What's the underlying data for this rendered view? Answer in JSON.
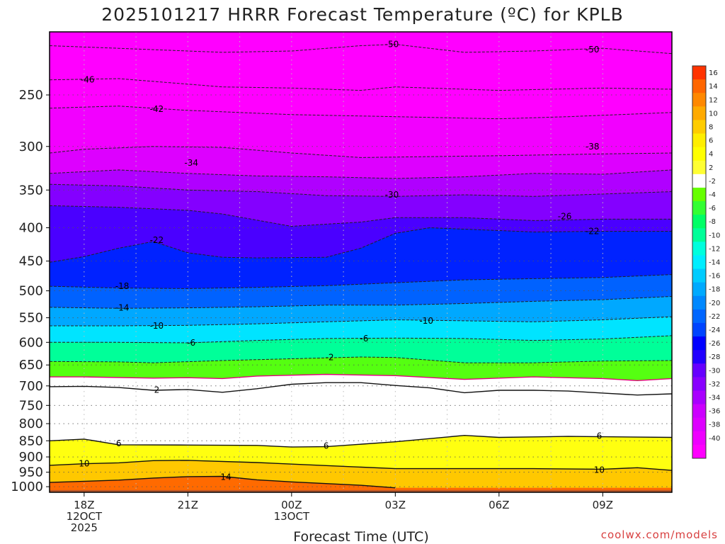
{
  "chart_data": {
    "type": "heatmap",
    "title": "2025101217 HRRR Forecast Temperature (ºC) for KPLB",
    "xlabel": "Forecast Time (UTC)",
    "ylabel": "",
    "credit": "coolwx.com/models",
    "x_ticks": [
      {
        "h": 1,
        "lines": [
          "18Z",
          "12OCT",
          "2025"
        ]
      },
      {
        "h": 4,
        "lines": [
          "21Z"
        ]
      },
      {
        "h": 7,
        "lines": [
          "00Z",
          "13OCT"
        ]
      },
      {
        "h": 10,
        "lines": [
          "03Z"
        ]
      },
      {
        "h": 13,
        "lines": [
          "06Z"
        ]
      },
      {
        "h": 16,
        "lines": [
          "09Z"
        ]
      }
    ],
    "x_range_hours": [
      0,
      18
    ],
    "y_ticks_hpa": [
      250,
      300,
      350,
      400,
      450,
      500,
      550,
      600,
      650,
      700,
      750,
      800,
      850,
      900,
      950,
      1000
    ],
    "y_range_hpa": [
      200,
      1020
    ],
    "grid": "dotted",
    "colorbar": {
      "levels": [
        -40,
        -38,
        -36,
        -34,
        -32,
        -30,
        -28,
        -26,
        -24,
        -22,
        -20,
        -18,
        -16,
        -14,
        -12,
        -10,
        -8,
        -6,
        -4,
        -2,
        2,
        4,
        6,
        8,
        10,
        12,
        14,
        16
      ],
      "colors": [
        "#ff00ff",
        "#ee00ff",
        "#dd00ff",
        "#cc00ff",
        "#a900ff",
        "#8800ff",
        "#6600ff",
        "#2200ff",
        "#0000ff",
        "#0044ff",
        "#0066ff",
        "#0088ff",
        "#00aaff",
        "#00ccff",
        "#00eeff",
        "#00ffdd",
        "#00ff99",
        "#00ff66",
        "#33ff33",
        "#66ff00",
        "#ffffff",
        "#ffff33",
        "#ffff00",
        "#ffee00",
        "#ffcc00",
        "#ffaa00",
        "#ff8800",
        "#ff6600",
        "#ff3300"
      ],
      "top_value": 16,
      "bottom_value": -40
    },
    "contours": [
      {
        "value": -50,
        "style": "dashed",
        "pts": [
          [
            0,
            210
          ],
          [
            2,
            212
          ],
          [
            5,
            215
          ],
          [
            7,
            214
          ],
          [
            9,
            210
          ],
          [
            10,
            209
          ],
          [
            12,
            215
          ],
          [
            14,
            214
          ],
          [
            16,
            212
          ],
          [
            18,
            216
          ]
        ],
        "labels": [
          [
            9.9,
            209
          ],
          [
            15.7,
            213
          ]
        ]
      },
      {
        "value": -46,
        "style": "dashed",
        "pts": [
          [
            0,
            237
          ],
          [
            2,
            236
          ],
          [
            5,
            243
          ],
          [
            7,
            244
          ],
          [
            9,
            246
          ],
          [
            10,
            243
          ],
          [
            13,
            246
          ],
          [
            16,
            244
          ],
          [
            18,
            245
          ]
        ],
        "labels": [
          [
            1.1,
            237
          ]
        ]
      },
      {
        "value": -42,
        "style": "dashed",
        "pts": [
          [
            0,
            262
          ],
          [
            2,
            260
          ],
          [
            4,
            264
          ],
          [
            7,
            268
          ],
          [
            10,
            270
          ],
          [
            13,
            272
          ],
          [
            15,
            270
          ],
          [
            18,
            266
          ]
        ],
        "labels": [
          [
            3.1,
            263
          ]
        ]
      },
      {
        "value": -38,
        "style": "dashed",
        "pts": [
          [
            0,
            307
          ],
          [
            1,
            303
          ],
          [
            3,
            300
          ],
          [
            5,
            301
          ],
          [
            7,
            307
          ],
          [
            9,
            312
          ],
          [
            11,
            311
          ],
          [
            13,
            310
          ],
          [
            16,
            308
          ],
          [
            18,
            307
          ]
        ],
        "labels": [
          [
            15.7,
            300
          ]
        ]
      },
      {
        "value": -34,
        "style": "dashed",
        "pts": [
          [
            0,
            330
          ],
          [
            2,
            326
          ],
          [
            4,
            330
          ],
          [
            6,
            333
          ],
          [
            8,
            334
          ],
          [
            10,
            336
          ],
          [
            12,
            334
          ],
          [
            14,
            330
          ],
          [
            16,
            331
          ],
          [
            18,
            326
          ]
        ],
        "labels": [
          [
            4.1,
            318
          ]
        ]
      },
      {
        "value": -30,
        "style": "dashed",
        "pts": [
          [
            0,
            343
          ],
          [
            2,
            345
          ],
          [
            4,
            350
          ],
          [
            6,
            352
          ],
          [
            8,
            357
          ],
          [
            10,
            358
          ],
          [
            12,
            356
          ],
          [
            14,
            358
          ],
          [
            16,
            355
          ],
          [
            18,
            352
          ]
        ],
        "labels": [
          [
            9.9,
            356
          ]
        ]
      },
      {
        "value": -26,
        "style": "dashed",
        "pts": [
          [
            0,
            370
          ],
          [
            2,
            372
          ],
          [
            4,
            376
          ],
          [
            5,
            381
          ],
          [
            7,
            398
          ],
          [
            9,
            392
          ],
          [
            10,
            386
          ],
          [
            12,
            386
          ],
          [
            14,
            390
          ],
          [
            16,
            388
          ],
          [
            18,
            388
          ]
        ],
        "labels": [
          [
            14.9,
            384
          ]
        ]
      },
      {
        "value": -22,
        "style": "dashed",
        "pts": [
          [
            0,
            452
          ],
          [
            1,
            443
          ],
          [
            2,
            430
          ],
          [
            3,
            420
          ],
          [
            4,
            437
          ],
          [
            5,
            444
          ],
          [
            6,
            445
          ],
          [
            8,
            444
          ],
          [
            9,
            430
          ],
          [
            10,
            408
          ],
          [
            11,
            400
          ],
          [
            12,
            402
          ],
          [
            14,
            406
          ],
          [
            16,
            405
          ],
          [
            18,
            405
          ]
        ],
        "labels": [
          [
            3.1,
            418
          ],
          [
            15.7,
            405
          ]
        ]
      },
      {
        "value": -18,
        "style": "dashed",
        "pts": [
          [
            0,
            492
          ],
          [
            2,
            495
          ],
          [
            4,
            496
          ],
          [
            6,
            494
          ],
          [
            8,
            491
          ],
          [
            10,
            486
          ],
          [
            12,
            481
          ],
          [
            14,
            479
          ],
          [
            16,
            477
          ],
          [
            18,
            472
          ]
        ],
        "labels": [
          [
            2.1,
            492
          ]
        ]
      },
      {
        "value": -14,
        "style": "dashed",
        "pts": [
          [
            0,
            530
          ],
          [
            2,
            532
          ],
          [
            4,
            531
          ],
          [
            6,
            529
          ],
          [
            8,
            526
          ],
          [
            10,
            526
          ],
          [
            12,
            523
          ],
          [
            14,
            519
          ],
          [
            16,
            516
          ],
          [
            18,
            510
          ]
        ],
        "labels": [
          [
            2.1,
            531
          ]
        ]
      },
      {
        "value": -10,
        "style": "dashed",
        "pts": [
          [
            0,
            566
          ],
          [
            2,
            566
          ],
          [
            4,
            565
          ],
          [
            6,
            562
          ],
          [
            8,
            558
          ],
          [
            10,
            554
          ],
          [
            12,
            556
          ],
          [
            14,
            558
          ],
          [
            16,
            554
          ],
          [
            18,
            548
          ]
        ],
        "labels": [
          [
            3.1,
            566
          ],
          [
            10.9,
            556
          ]
        ]
      },
      {
        "value": -6,
        "style": "dashed",
        "pts": [
          [
            0,
            600
          ],
          [
            2,
            600
          ],
          [
            4,
            601
          ],
          [
            6,
            596
          ],
          [
            8,
            592
          ],
          [
            10,
            591
          ],
          [
            12,
            592
          ],
          [
            14,
            596
          ],
          [
            16,
            593
          ],
          [
            18,
            586
          ]
        ],
        "labels": [
          [
            4.1,
            601
          ],
          [
            9.1,
            592
          ]
        ]
      },
      {
        "value": -2,
        "style": "dashed",
        "pts": [
          [
            0,
            642
          ],
          [
            2,
            643
          ],
          [
            3,
            645
          ],
          [
            5,
            640
          ],
          [
            7,
            636
          ],
          [
            9,
            632
          ],
          [
            10,
            633
          ],
          [
            12,
            645
          ],
          [
            14,
            645
          ],
          [
            16,
            641
          ],
          [
            18,
            640
          ]
        ],
        "labels": [
          [
            8.1,
            633
          ]
        ]
      },
      {
        "value": 0,
        "style": "magenta",
        "pts": [
          [
            0,
            678
          ],
          [
            1,
            678
          ],
          [
            3,
            681
          ],
          [
            4,
            680
          ],
          [
            5,
            682
          ],
          [
            6,
            676
          ],
          [
            8,
            672
          ],
          [
            10,
            675
          ],
          [
            12,
            684
          ],
          [
            14,
            678
          ],
          [
            16,
            682
          ],
          [
            17,
            687
          ],
          [
            18,
            682
          ]
        ],
        "labels": []
      },
      {
        "value": 2,
        "style": "solid",
        "pts": [
          [
            0,
            702
          ],
          [
            1,
            701
          ],
          [
            2,
            704
          ],
          [
            3,
            711
          ],
          [
            4,
            709
          ],
          [
            5,
            716
          ],
          [
            6,
            707
          ],
          [
            7,
            696
          ],
          [
            8,
            692
          ],
          [
            9,
            692
          ],
          [
            10,
            699
          ],
          [
            11,
            705
          ],
          [
            12,
            717
          ],
          [
            13,
            711
          ],
          [
            14,
            711
          ],
          [
            15,
            713
          ],
          [
            16,
            718
          ],
          [
            17,
            723
          ],
          [
            18,
            720
          ]
        ],
        "labels": [
          [
            3.1,
            710
          ]
        ]
      },
      {
        "value": 6,
        "style": "solid",
        "pts": [
          [
            0,
            850
          ],
          [
            1,
            845
          ],
          [
            2,
            862
          ],
          [
            4,
            863
          ],
          [
            6,
            864
          ],
          [
            7,
            869
          ],
          [
            8,
            868
          ],
          [
            10,
            853
          ],
          [
            12,
            834
          ],
          [
            13,
            840
          ],
          [
            15,
            837
          ],
          [
            18,
            840
          ]
        ],
        "labels": [
          [
            2.0,
            858
          ],
          [
            8.0,
            866
          ],
          [
            15.9,
            836
          ]
        ]
      },
      {
        "value": 10,
        "style": "solid",
        "pts": [
          [
            0,
            927
          ],
          [
            1,
            922
          ],
          [
            2,
            919
          ],
          [
            3,
            912
          ],
          [
            4,
            911
          ],
          [
            6,
            918
          ],
          [
            8,
            928
          ],
          [
            10,
            938
          ],
          [
            12,
            938
          ],
          [
            14,
            938
          ],
          [
            16,
            940
          ],
          [
            17,
            935
          ],
          [
            18,
            944
          ]
        ],
        "labels": [
          [
            1.0,
            921
          ],
          [
            15.9,
            943
          ]
        ]
      },
      {
        "value": 14,
        "style": "solid",
        "pts": [
          [
            0,
            985
          ],
          [
            2,
            977
          ],
          [
            3,
            970
          ],
          [
            4,
            965
          ],
          [
            5,
            964
          ],
          [
            6,
            976
          ],
          [
            7,
            983
          ],
          [
            9,
            995
          ],
          [
            10,
            1004
          ]
        ],
        "labels": [
          [
            5.1,
            966
          ]
        ]
      }
    ]
  }
}
